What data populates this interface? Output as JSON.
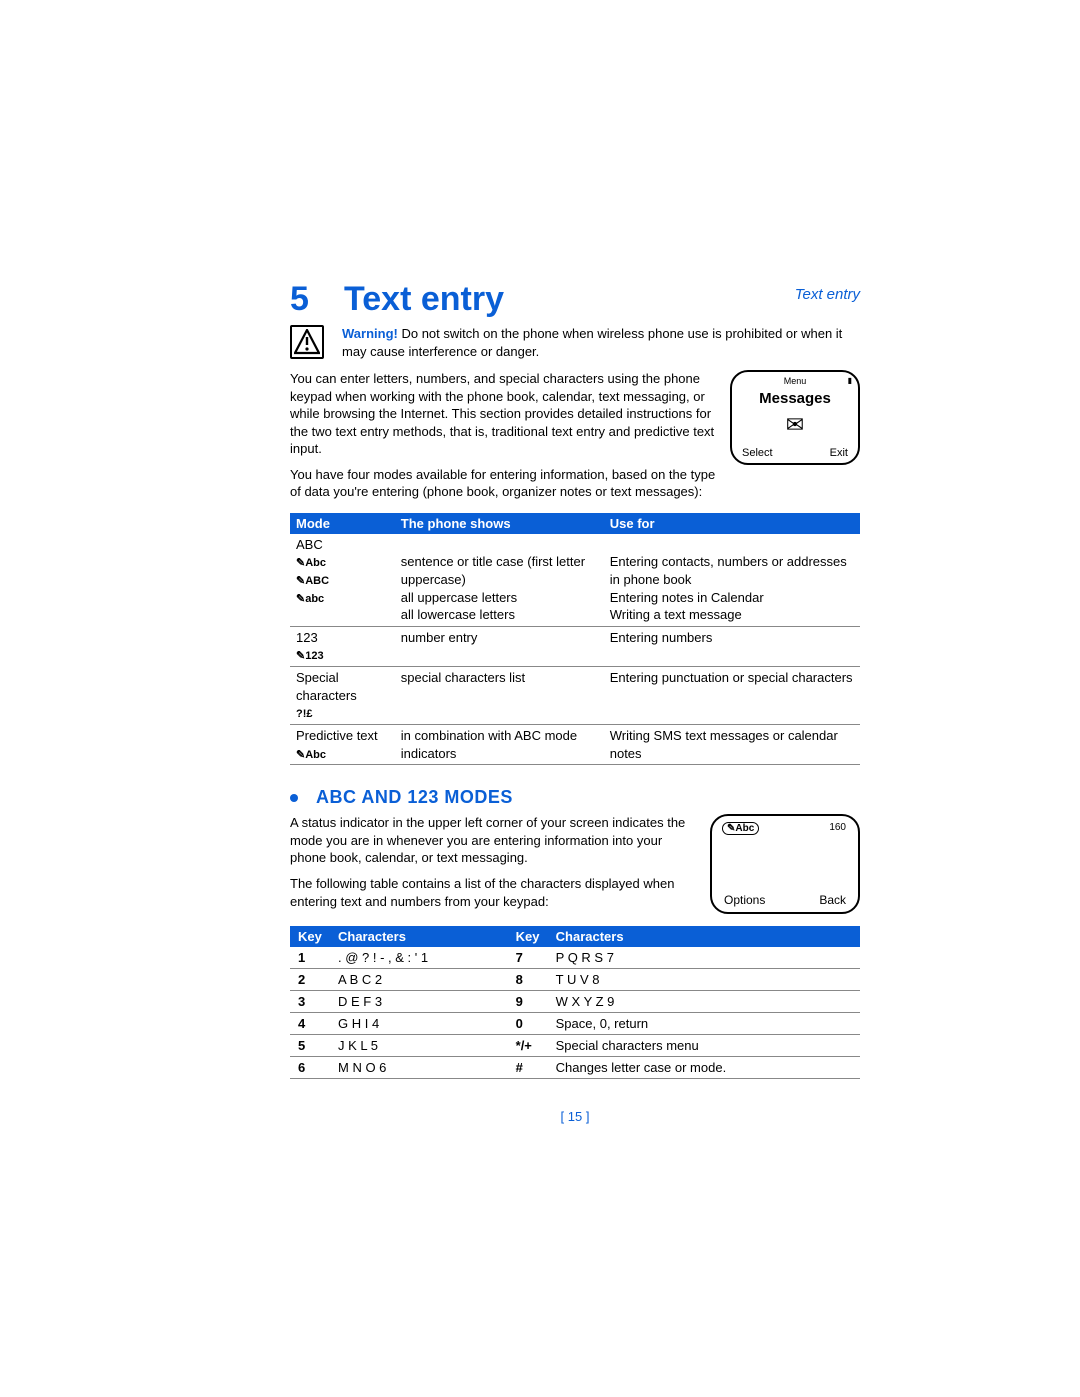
{
  "colors": {
    "accent": "#0a5fd6",
    "text": "#000000",
    "rule": "#888888",
    "bg": "#ffffff"
  },
  "header": {
    "running": "Text entry"
  },
  "chapter": {
    "number": "5",
    "title": "Text entry"
  },
  "warning": {
    "label": "Warning!",
    "text": "Do not switch on the phone when wireless phone use is prohibited or when it may cause interference or danger."
  },
  "intro1": "You can enter letters, numbers, and special characters using the phone keypad when working with the phone book, calendar, text messaging, or while browsing the Internet. This section provides detailed instructions for the two text entry methods, that is, traditional text entry and predictive text input.",
  "intro2": "You have four modes available for entering information, based on the type of data you're entering (phone book, organizer notes or text messages):",
  "phone1": {
    "menu": "Menu",
    "title": "Messages",
    "left": "Select",
    "right": "Exit"
  },
  "modes_table": {
    "headers": [
      "Mode",
      "The phone shows",
      "Use for"
    ],
    "rows": [
      {
        "mode": "ABC",
        "icons": [
          "✎Abc",
          "✎ABC",
          "✎abc"
        ],
        "shows": [
          "sentence or title case (first letter uppercase)",
          "all uppercase letters",
          "all lowercase letters"
        ],
        "use": [
          "Entering contacts, numbers or addresses in phone book",
          "Entering notes in Calendar",
          "Writing a text message"
        ]
      },
      {
        "mode": "123",
        "icons": [
          "✎123"
        ],
        "shows": [
          "number entry"
        ],
        "use": [
          "Entering numbers"
        ]
      },
      {
        "mode": "Special characters",
        "icons": [
          "?!£"
        ],
        "shows": [
          "special characters list"
        ],
        "use": [
          "Entering punctuation or special characters"
        ]
      },
      {
        "mode": "Predictive text",
        "icons": [
          "✎Abc"
        ],
        "shows": [
          "in combination with ABC mode indicators"
        ],
        "use": [
          "Writing SMS text messages or calendar notes"
        ]
      }
    ]
  },
  "section2": {
    "title": "ABC AND 123 MODES",
    "p1": "A status indicator in the upper left corner of your screen indicates the mode you are in whenever you are entering information into your phone book, calendar, or text messaging.",
    "p2": "The following table contains a list of the characters displayed when entering text and numbers from your keypad:"
  },
  "phone2": {
    "indicator": "✎Abc",
    "count": "160",
    "left": "Options",
    "right": "Back"
  },
  "keys_table": {
    "headers": [
      "Key",
      "Characters",
      "Key",
      "Characters"
    ],
    "rows": [
      [
        "1",
        ". @ ? ! - , & : ' 1",
        "7",
        "P Q R S 7"
      ],
      [
        "2",
        "A B C 2",
        "8",
        "T U V 8"
      ],
      [
        "3",
        "D E F 3",
        "9",
        "W X Y Z 9"
      ],
      [
        "4",
        "G H I 4",
        "0",
        "Space, 0, return"
      ],
      [
        "5",
        "J K L 5",
        "*/+",
        "Special characters menu"
      ],
      [
        "6",
        "M N O 6",
        "#",
        "Changes letter case or mode."
      ]
    ]
  },
  "footer": {
    "page": "[ 15 ]"
  }
}
